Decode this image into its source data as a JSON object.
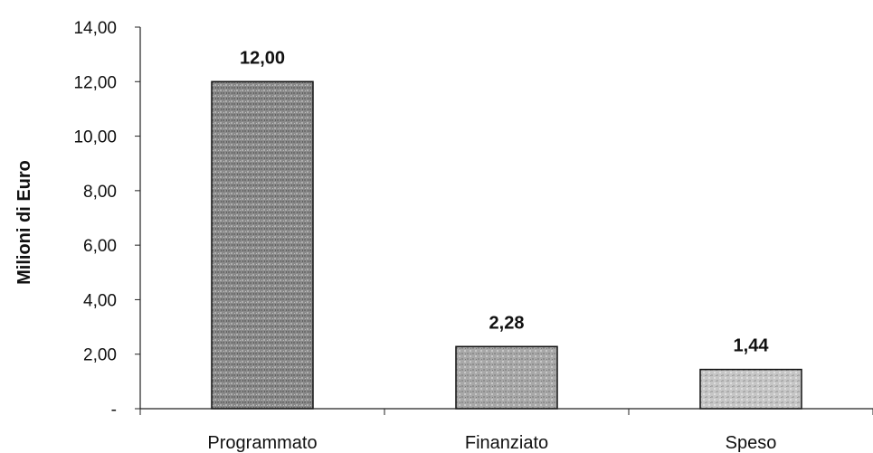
{
  "chart_data": {
    "type": "bar",
    "title": "",
    "xlabel": "",
    "ylabel": "Milioni di Euro",
    "categories": [
      "Programmato",
      "Finanziato",
      "Speso"
    ],
    "values": [
      12.0,
      2.28,
      1.44
    ],
    "value_labels": [
      "12,00",
      "2,28",
      "1,44"
    ],
    "ylim": [
      0,
      14
    ],
    "y_ticks": [
      0,
      2,
      4,
      6,
      8,
      10,
      12,
      14
    ],
    "y_tick_labels": [
      "-",
      "2,00",
      "4,00",
      "6,00",
      "8,00",
      "10,00",
      "12,00",
      "14,00"
    ],
    "grid": false,
    "legend": "none",
    "bar_colors": [
      "#8c8c8c",
      "#a9a9a9",
      "#c8c8c8"
    ]
  }
}
